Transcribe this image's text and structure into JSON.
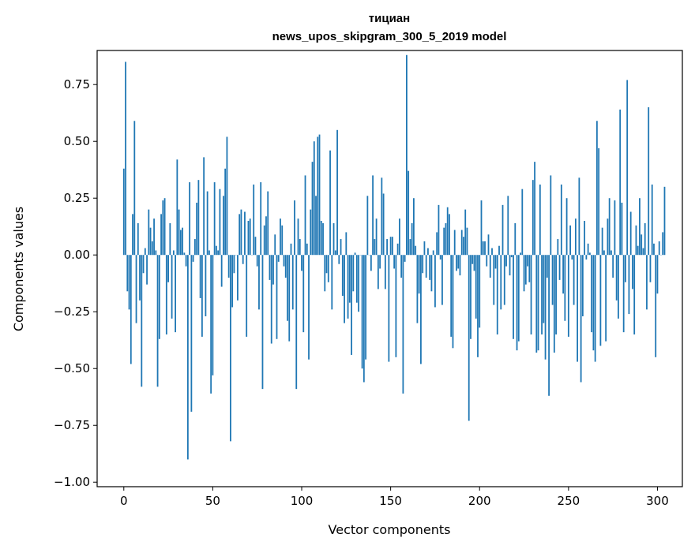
{
  "chart_data": {
    "type": "bar",
    "title_line1": "тициан",
    "title_line2": "news_upos_skipgram_300_5_2019 model",
    "xlabel": "Vector components",
    "ylabel": "Components values",
    "xlim": [
      -15,
      314
    ],
    "ylim": [
      -1.02,
      0.9
    ],
    "xticks": [
      0,
      50,
      100,
      150,
      200,
      250,
      300
    ],
    "xtick_labels": [
      "0",
      "50",
      "100",
      "150",
      "200",
      "250",
      "300"
    ],
    "yticks": [
      -1.0,
      -0.75,
      -0.5,
      -0.25,
      0.0,
      0.25,
      0.5,
      0.75
    ],
    "ytick_labels": [
      "−1.00",
      "−0.75",
      "−0.50",
      "−0.25",
      "0.00",
      "0.25",
      "0.50",
      "0.75"
    ],
    "bar_color": "#1f77b4",
    "values": [
      0.38,
      0.85,
      -0.16,
      -0.24,
      -0.48,
      0.18,
      0.59,
      -0.3,
      0.14,
      -0.2,
      -0.58,
      -0.08,
      0.03,
      -0.13,
      0.2,
      0.12,
      0.06,
      0.16,
      0.02,
      -0.58,
      -0.37,
      0.18,
      0.24,
      0.25,
      -0.35,
      -0.12,
      0.14,
      -0.28,
      0.02,
      -0.34,
      0.42,
      0.2,
      0.11,
      0.12,
      0.01,
      -0.05,
      -0.9,
      0.32,
      -0.69,
      -0.03,
      0.07,
      0.23,
      0.33,
      -0.19,
      -0.36,
      0.43,
      -0.27,
      0.28,
      0.02,
      -0.61,
      -0.53,
      0.32,
      0.04,
      0.02,
      0.29,
      -0.14,
      0.26,
      0.38,
      0.52,
      -0.1,
      -0.82,
      -0.23,
      -0.08,
      0.0,
      -0.2,
      0.18,
      0.2,
      -0.04,
      0.19,
      -0.36,
      0.15,
      0.16,
      0.0,
      0.31,
      0.08,
      -0.05,
      -0.24,
      0.32,
      -0.59,
      0.13,
      0.17,
      0.28,
      -0.11,
      -0.39,
      -0.13,
      0.09,
      -0.37,
      -0.03,
      0.16,
      0.13,
      -0.05,
      -0.1,
      -0.29,
      -0.38,
      0.05,
      -0.24,
      0.24,
      -0.59,
      0.16,
      0.07,
      -0.07,
      -0.34,
      0.35,
      0.05,
      -0.46,
      0.2,
      0.41,
      0.5,
      0.26,
      0.52,
      0.53,
      0.15,
      0.14,
      -0.16,
      -0.08,
      -0.12,
      0.46,
      -0.24,
      0.14,
      0.02,
      0.55,
      -0.04,
      0.07,
      -0.18,
      -0.3,
      0.1,
      -0.28,
      -0.21,
      -0.44,
      -0.16,
      0.01,
      -0.21,
      -0.25,
      0.0,
      -0.5,
      -0.56,
      -0.46,
      0.26,
      0.0,
      -0.07,
      0.35,
      0.07,
      0.16,
      -0.15,
      -0.06,
      0.34,
      0.27,
      -0.15,
      0.07,
      -0.47,
      0.08,
      0.08,
      -0.06,
      -0.45,
      0.05,
      0.16,
      -0.1,
      -0.61,
      -0.03,
      0.88,
      0.37,
      0.07,
      0.14,
      0.25,
      0.04,
      -0.3,
      -0.17,
      -0.48,
      -0.08,
      0.06,
      -0.1,
      0.03,
      -0.11,
      -0.16,
      0.02,
      -0.23,
      0.1,
      0.22,
      -0.02,
      -0.22,
      0.12,
      0.14,
      0.21,
      0.18,
      -0.36,
      -0.41,
      0.11,
      -0.07,
      -0.06,
      -0.09,
      0.11,
      0.08,
      0.2,
      0.12,
      -0.73,
      -0.37,
      -0.04,
      -0.07,
      -0.28,
      -0.45,
      -0.32,
      0.24,
      0.06,
      0.06,
      -0.05,
      0.09,
      -0.1,
      0.03,
      -0.22,
      -0.06,
      -0.35,
      0.04,
      -0.24,
      0.22,
      -0.22,
      -0.05,
      0.26,
      -0.09,
      -0.01,
      -0.37,
      0.14,
      -0.42,
      -0.38,
      0.01,
      0.29,
      -0.16,
      -0.13,
      -0.05,
      -0.12,
      -0.35,
      0.33,
      0.41,
      -0.43,
      -0.42,
      0.31,
      -0.35,
      -0.3,
      -0.46,
      -0.1,
      -0.62,
      0.35,
      -0.22,
      -0.43,
      -0.35,
      0.07,
      -0.11,
      0.31,
      -0.17,
      -0.29,
      0.25,
      -0.36,
      0.13,
      -0.02,
      -0.22,
      0.16,
      -0.47,
      0.34,
      -0.56,
      -0.27,
      0.15,
      -0.02,
      0.05,
      0.01,
      -0.34,
      -0.42,
      -0.47,
      0.59,
      0.47,
      -0.4,
      0.12,
      0.02,
      -0.38,
      0.16,
      0.25,
      0.02,
      -0.1,
      0.24,
      -0.2,
      -0.28,
      0.64,
      0.23,
      -0.34,
      -0.12,
      0.77,
      -0.26,
      0.19,
      -0.15,
      -0.35,
      0.13,
      0.04,
      0.25,
      0.09,
      0.03,
      0.14,
      -0.24,
      0.65,
      -0.12,
      0.31,
      0.05,
      -0.45,
      -0.17,
      0.06,
      0.0,
      0.1,
      0.3
    ]
  }
}
